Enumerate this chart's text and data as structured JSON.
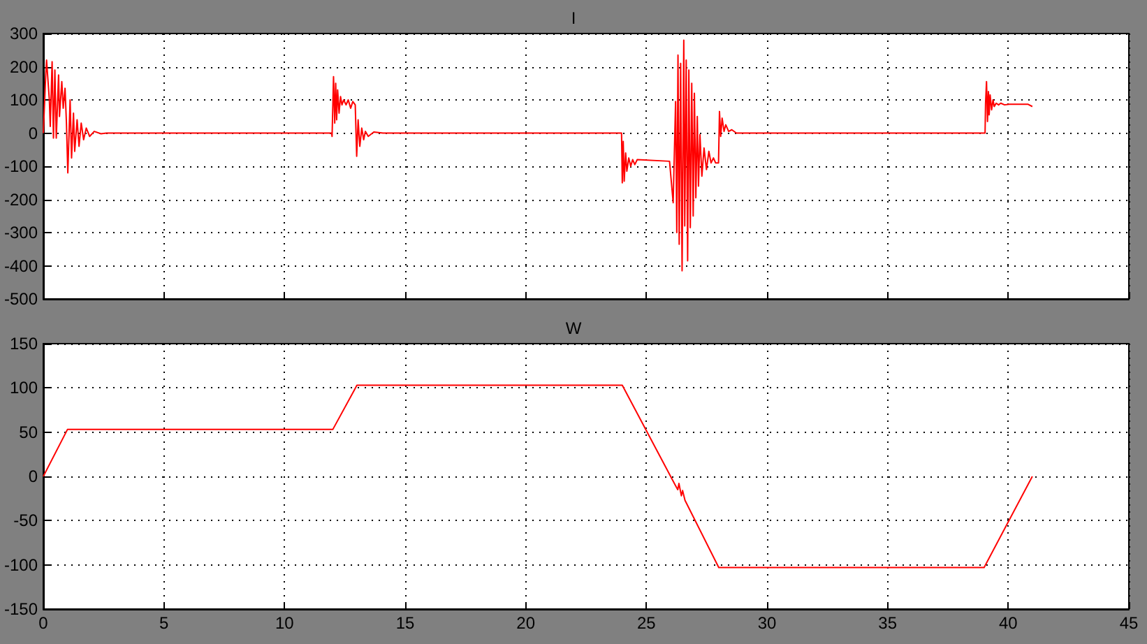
{
  "chart_data": [
    {
      "type": "line",
      "title": "I",
      "xlim": [
        0,
        45
      ],
      "xticks": [
        0,
        5,
        10,
        15,
        20,
        25,
        30,
        35,
        40,
        45
      ],
      "ylim": [
        -500,
        300
      ],
      "yticks": [
        -500,
        -400,
        -300,
        -200,
        -100,
        0,
        100,
        200,
        300
      ],
      "grid": true,
      "tick_labels": "y",
      "marker": "none",
      "x": [
        0,
        0.096,
        0.134,
        0.249,
        0.287,
        0.364,
        0.42,
        0.479,
        0.536,
        0.632,
        0.67,
        0.766,
        0.824,
        0.9,
        0.958,
        1.015,
        1.11,
        1.17,
        1.25,
        1.3,
        1.4,
        1.48,
        1.57,
        1.67,
        1.78,
        1.92,
        2.11,
        2.39,
        2.62,
        11.95,
        11.97,
        12.03,
        12.08,
        12.12,
        12.16,
        12.2,
        12.26,
        12.32,
        12.38,
        12.45,
        12.55,
        12.64,
        12.74,
        12.83,
        12.93,
        12.99,
        13.05,
        13.12,
        13.2,
        13.28,
        13.35,
        13.47,
        13.7,
        14.08,
        23.97,
        24.0,
        24.04,
        24.08,
        24.14,
        24.19,
        24.27,
        24.35,
        24.43,
        24.52,
        24.62,
        25.96,
        26.11,
        26.21,
        26.26,
        26.31,
        26.36,
        26.42,
        26.48,
        26.55,
        26.59,
        26.65,
        26.71,
        26.76,
        26.82,
        26.88,
        26.94,
        26.99,
        27.05,
        27.11,
        27.16,
        27.22,
        27.3,
        27.39,
        27.49,
        27.59,
        27.68,
        27.78,
        27.87,
        27.99,
        28.03,
        28.08,
        28.14,
        28.22,
        28.29,
        28.41,
        28.54,
        28.73,
        29.21,
        39.04,
        39.06,
        39.1,
        39.14,
        39.18,
        39.21,
        39.25,
        39.31,
        39.37,
        39.42,
        39.5,
        39.6,
        39.69,
        39.85,
        40.04,
        40.81,
        41.0
      ],
      "series": [
        {
          "color": "#ff0000",
          "values": [
            0,
            170,
            220,
            100,
            20,
            215,
            -15,
            190,
            -15,
            175,
            50,
            155,
            75,
            135,
            30,
            -120,
            100,
            -75,
            60,
            -55,
            40,
            -40,
            30,
            -20,
            15,
            -10,
            5,
            -2,
            0,
            0,
            -10,
            170,
            30,
            150,
            40,
            130,
            60,
            110,
            85,
            100,
            85,
            100,
            75,
            95,
            85,
            -70,
            40,
            -40,
            15,
            -20,
            5,
            -10,
            3,
            0,
            0,
            -150,
            -25,
            -145,
            -60,
            -115,
            -75,
            -100,
            -80,
            -95,
            -80,
            -85,
            -210,
            95,
            -300,
            235,
            -335,
            210,
            -415,
            280,
            -280,
            220,
            -385,
            190,
            -285,
            150,
            -250,
            120,
            -195,
            50,
            -160,
            -5,
            -130,
            -45,
            -110,
            -55,
            -90,
            -75,
            -90,
            -90,
            65,
            -10,
            45,
            5,
            25,
            5,
            10,
            0,
            0,
            0,
            90,
            155,
            35,
            125,
            55,
            115,
            70,
            100,
            80,
            90,
            85,
            90,
            85,
            87,
            87,
            80
          ]
        }
      ]
    },
    {
      "type": "line",
      "title": "W",
      "xlim": [
        0,
        45
      ],
      "xticks": [
        0,
        5,
        10,
        15,
        20,
        25,
        30,
        35,
        40,
        45
      ],
      "ylim": [
        -150,
        150
      ],
      "yticks": [
        -150,
        -100,
        -50,
        0,
        50,
        100,
        150
      ],
      "grid": true,
      "marker": "none",
      "x": [
        0,
        1.0,
        12.0,
        13.0,
        24.0,
        26.2,
        26.3,
        26.35,
        26.45,
        26.5,
        26.6,
        28.0,
        39.0,
        41.0
      ],
      "series": [
        {
          "color": "#ff0000",
          "values": [
            0,
            53,
            53,
            103,
            103,
            -10,
            -15,
            -8,
            -22,
            -16,
            -27,
            -103,
            -103,
            0
          ]
        }
      ]
    }
  ]
}
